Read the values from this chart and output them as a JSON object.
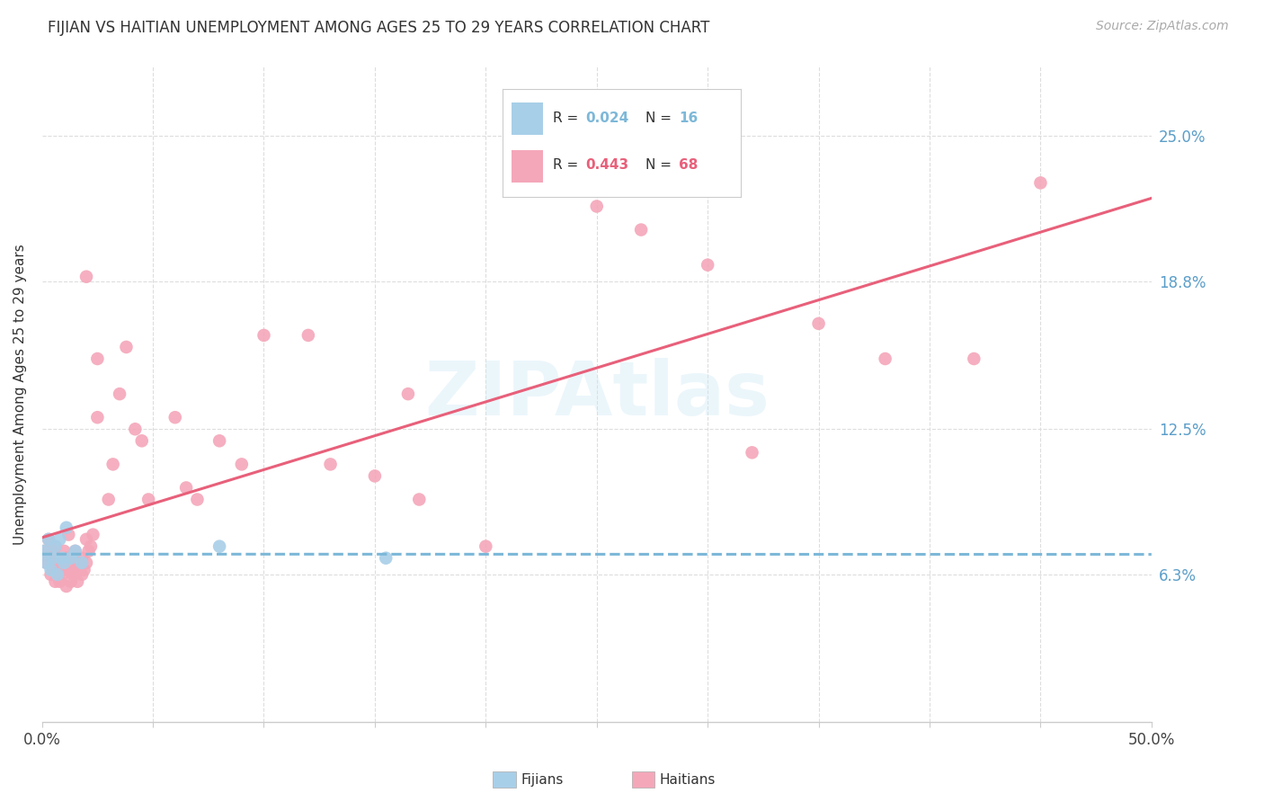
{
  "title": "FIJIAN VS HAITIAN UNEMPLOYMENT AMONG AGES 25 TO 29 YEARS CORRELATION CHART",
  "source": "Source: ZipAtlas.com",
  "ylabel": "Unemployment Among Ages 25 to 29 years",
  "xlim": [
    0.0,
    0.5
  ],
  "ylim": [
    0.0,
    0.28
  ],
  "xtick_positions": [
    0.0,
    0.05,
    0.1,
    0.15,
    0.2,
    0.25,
    0.3,
    0.35,
    0.4,
    0.45,
    0.5
  ],
  "ytick_positions": [
    0.063,
    0.125,
    0.188,
    0.25
  ],
  "ytick_labels": [
    "6.3%",
    "12.5%",
    "18.8%",
    "25.0%"
  ],
  "fijian_color": "#a8cfe8",
  "haitian_color": "#f4a7b9",
  "fijian_line_color": "#7db8d8",
  "haitian_line_color": "#e8607a",
  "legend_fijian_R": "0.024",
  "legend_fijian_N": "16",
  "legend_haitian_R": "0.443",
  "legend_haitian_N": "68",
  "watermark_text": "ZIPAtlas",
  "fijian_x": [
    0.001,
    0.002,
    0.003,
    0.004,
    0.005,
    0.006,
    0.007,
    0.008,
    0.009,
    0.01,
    0.011,
    0.013,
    0.015,
    0.018,
    0.08,
    0.155
  ],
  "fijian_y": [
    0.073,
    0.068,
    0.078,
    0.065,
    0.07,
    0.075,
    0.063,
    0.078,
    0.07,
    0.068,
    0.083,
    0.07,
    0.073,
    0.068,
    0.075,
    0.07
  ],
  "haitian_x": [
    0.001,
    0.002,
    0.003,
    0.003,
    0.004,
    0.004,
    0.005,
    0.005,
    0.006,
    0.006,
    0.007,
    0.007,
    0.008,
    0.008,
    0.009,
    0.009,
    0.01,
    0.01,
    0.011,
    0.011,
    0.012,
    0.012,
    0.013,
    0.013,
    0.014,
    0.015,
    0.015,
    0.016,
    0.016,
    0.017,
    0.018,
    0.018,
    0.019,
    0.02,
    0.02,
    0.021,
    0.022,
    0.023,
    0.025,
    0.03,
    0.032,
    0.035,
    0.038,
    0.042,
    0.045,
    0.048,
    0.06,
    0.065,
    0.07,
    0.08,
    0.09,
    0.1,
    0.12,
    0.13,
    0.15,
    0.165,
    0.17,
    0.2,
    0.25,
    0.27,
    0.3,
    0.32,
    0.35,
    0.38,
    0.42,
    0.45,
    0.02,
    0.025
  ],
  "haitian_y": [
    0.073,
    0.068,
    0.073,
    0.078,
    0.063,
    0.068,
    0.065,
    0.073,
    0.06,
    0.075,
    0.065,
    0.07,
    0.06,
    0.068,
    0.063,
    0.068,
    0.065,
    0.073,
    0.058,
    0.07,
    0.065,
    0.08,
    0.06,
    0.07,
    0.063,
    0.065,
    0.073,
    0.06,
    0.068,
    0.065,
    0.063,
    0.07,
    0.065,
    0.068,
    0.078,
    0.073,
    0.075,
    0.08,
    0.13,
    0.095,
    0.11,
    0.14,
    0.16,
    0.125,
    0.12,
    0.095,
    0.13,
    0.1,
    0.095,
    0.12,
    0.11,
    0.165,
    0.165,
    0.11,
    0.105,
    0.14,
    0.095,
    0.075,
    0.22,
    0.21,
    0.195,
    0.115,
    0.17,
    0.155,
    0.155,
    0.23,
    0.19,
    0.155
  ]
}
